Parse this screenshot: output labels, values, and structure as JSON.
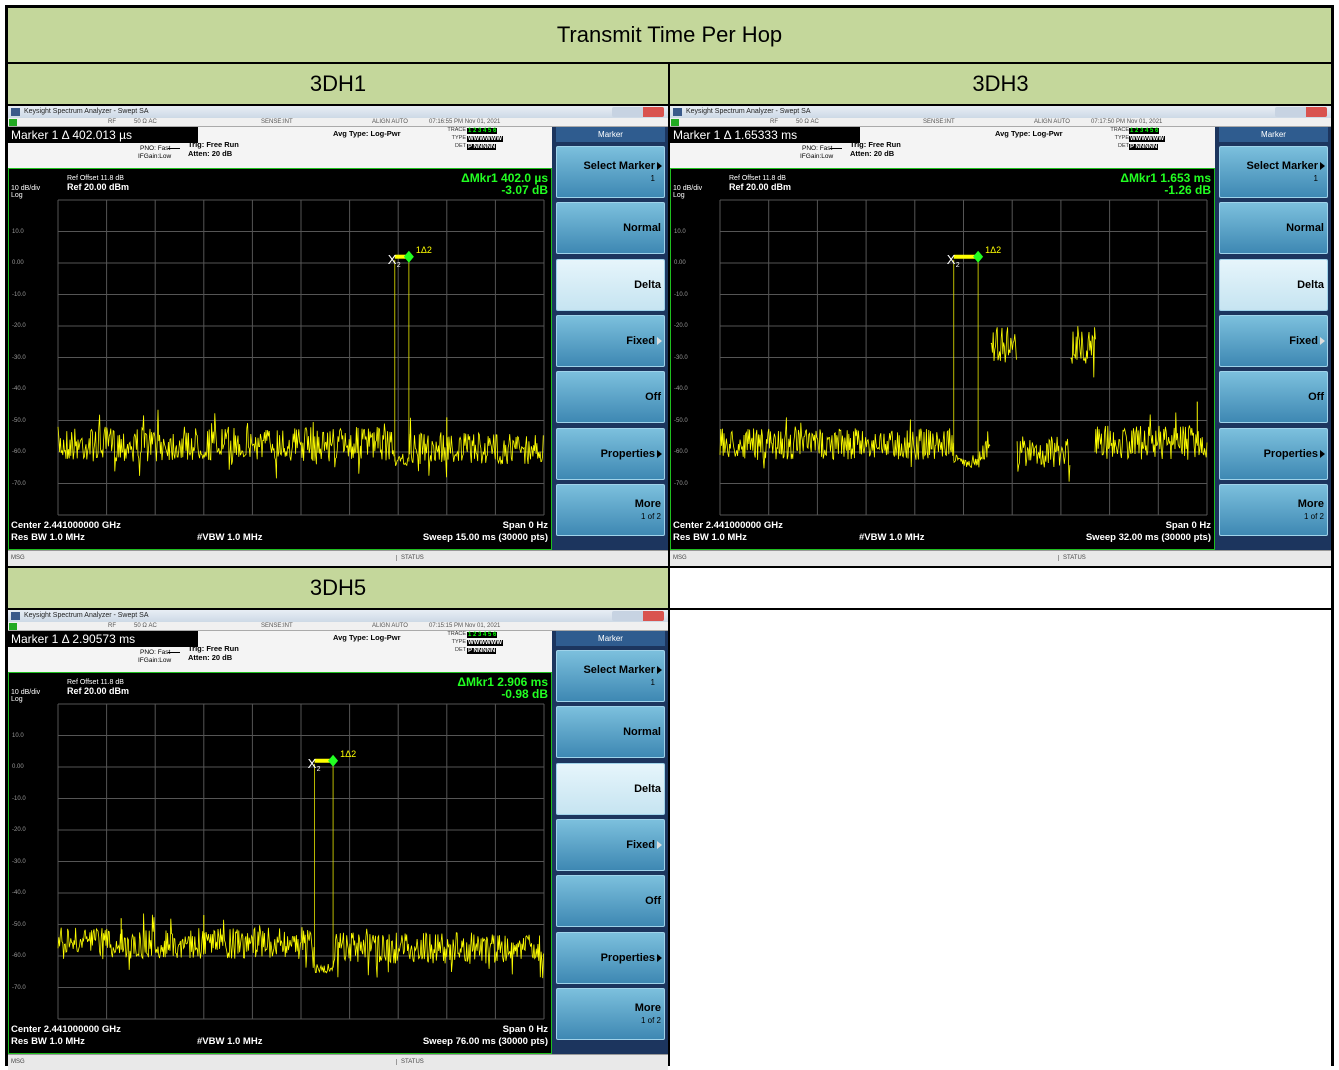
{
  "table": {
    "title": "Transmit Time Per Hop",
    "cells": [
      {
        "label": "3DH1",
        "screen": {
          "window_title": "Keysight Spectrum Analyzer - Swept SA",
          "status_bar": [
            "RF",
            "50 Ω  AC",
            "SENSE:INT",
            "ALIGN AUTO",
            "07:16:55 PM Nov 01, 2021"
          ],
          "marker_readout": "Marker 1 Δ 402.013 µs",
          "pno": "PNO: Fast",
          "ifgain": "IFGain:Low",
          "trig": "Trig: Free Run",
          "atten": "Atten: 20 dB",
          "avg": "Avg Type: Log-Pwr",
          "trace_rows": [
            {
              "label": "TRACE",
              "value": "1 2 3 4 5 6"
            },
            {
              "label": "TYPE",
              "value": "WWWWWW"
            },
            {
              "label": "DET",
              "value": "P NNNNN"
            }
          ],
          "ref_offset": "Ref Offset 11.8 dB",
          "scale": "10 dB/div",
          "ref": "Ref 20.00 dBm",
          "log": "Log",
          "delta_marker": [
            "ΔMkr1 402.0 µs",
            "-3.07 dB"
          ],
          "y_labels": [
            "10.0",
            "0.00",
            "-10.0",
            "-20.0",
            "-30.0",
            "-40.0",
            "-50.0",
            "-60.0",
            "-70.0"
          ],
          "marker_labels": {
            "delta": "1Δ2",
            "x": "X",
            "x_sub": "2"
          },
          "footer": {
            "center": "Center 2.441000000 GHz",
            "span": "Span 0 Hz",
            "rbw": "Res BW 1.0 MHz",
            "vbw": "#VBW 1.0 MHz",
            "sweep": "Sweep  15.00 ms (30000 pts)"
          },
          "msg": "MSG",
          "status": "STATUS",
          "softkeys": {
            "title": "Marker",
            "items": [
              {
                "label": "Select Marker",
                "sub": "1"
              },
              {
                "label": "Normal"
              },
              {
                "label": "Delta"
              },
              {
                "label": "Fixed"
              },
              {
                "label": "Off"
              },
              {
                "label": "Properties"
              },
              {
                "label": "More",
                "sub": "1 of 2"
              }
            ]
          }
        }
      },
      {
        "label": "3DH3",
        "screen": {
          "window_title": "Keysight Spectrum Analyzer - Swept SA",
          "status_bar": [
            "RF",
            "50 Ω  AC",
            "SENSE:INT",
            "ALIGN AUTO",
            "07:17:50 PM Nov 01, 2021"
          ],
          "marker_readout": "Marker 1 Δ 1.65333 ms",
          "pno": "PNO: Fast",
          "ifgain": "IFGain:Low",
          "trig": "Trig: Free Run",
          "atten": "Atten: 20 dB",
          "avg": "Avg Type: Log-Pwr",
          "trace_rows": [
            {
              "label": "TRACE",
              "value": "1 2 3 4 5 6"
            },
            {
              "label": "TYPE",
              "value": "WWWWWW"
            },
            {
              "label": "DET",
              "value": "P NNNNN"
            }
          ],
          "ref_offset": "Ref Offset 11.8 dB",
          "scale": "10 dB/div",
          "ref": "Ref 20.00 dBm",
          "log": "Log",
          "delta_marker": [
            "ΔMkr1 1.653 ms",
            "-1.26 dB"
          ],
          "y_labels": [
            "10.0",
            "0.00",
            "-10.0",
            "-20.0",
            "-30.0",
            "-40.0",
            "-50.0",
            "-60.0",
            "-70.0"
          ],
          "marker_labels": {
            "delta": "1Δ2",
            "x": "X",
            "x_sub": "2"
          },
          "footer": {
            "center": "Center 2.441000000 GHz",
            "span": "Span 0 Hz",
            "rbw": "Res BW 1.0 MHz",
            "vbw": "#VBW 1.0 MHz",
            "sweep": "Sweep  32.00 ms (30000 pts)"
          },
          "msg": "MSG",
          "status": "STATUS",
          "softkeys": {
            "title": "Marker",
            "items": [
              {
                "label": "Select Marker",
                "sub": "1"
              },
              {
                "label": "Normal"
              },
              {
                "label": "Delta"
              },
              {
                "label": "Fixed"
              },
              {
                "label": "Off"
              },
              {
                "label": "Properties"
              },
              {
                "label": "More",
                "sub": "1 of 2"
              }
            ]
          }
        }
      },
      {
        "label": "3DH5",
        "screen": {
          "window_title": "Keysight Spectrum Analyzer - Swept SA",
          "status_bar": [
            "RF",
            "50 Ω  AC",
            "SENSE:INT",
            "ALIGN AUTO",
            "07:15:15 PM Nov 01, 2021"
          ],
          "marker_readout": "Marker 1 Δ 2.90573 ms",
          "pno": "PNO: Fast",
          "ifgain": "IFGain:Low",
          "trig": "Trig: Free Run",
          "atten": "Atten: 20 dB",
          "avg": "Avg Type: Log-Pwr",
          "trace_rows": [
            {
              "label": "TRACE",
              "value": "1 2 3 4 5 6"
            },
            {
              "label": "TYPE",
              "value": "WWWWWW"
            },
            {
              "label": "DET",
              "value": "P NNNNN"
            }
          ],
          "ref_offset": "Ref Offset 11.8 dB",
          "scale": "10 dB/div",
          "ref": "Ref 20.00 dBm",
          "log": "Log",
          "delta_marker": [
            "ΔMkr1 2.906 ms",
            "-0.98 dB"
          ],
          "y_labels": [
            "10.0",
            "0.00",
            "-10.0",
            "-20.0",
            "-30.0",
            "-40.0",
            "-50.0",
            "-60.0",
            "-70.0"
          ],
          "marker_labels": {
            "delta": "1Δ2",
            "x": "X",
            "x_sub": "2"
          },
          "footer": {
            "center": "Center 2.441000000 GHz",
            "span": "Span 0 Hz",
            "rbw": "Res BW 1.0 MHz",
            "vbw": "#VBW 1.0 MHz",
            "sweep": "Sweep  76.00 ms (30000 pts)"
          },
          "msg": "MSG",
          "status": "STATUS",
          "softkeys": {
            "title": "Marker",
            "items": [
              {
                "label": "Select Marker",
                "sub": "1"
              },
              {
                "label": "Normal"
              },
              {
                "label": "Delta"
              },
              {
                "label": "Fixed"
              },
              {
                "label": "Off"
              },
              {
                "label": "Properties"
              },
              {
                "label": "More",
                "sub": "1 of 2"
              }
            ]
          }
        }
      }
    ]
  }
}
